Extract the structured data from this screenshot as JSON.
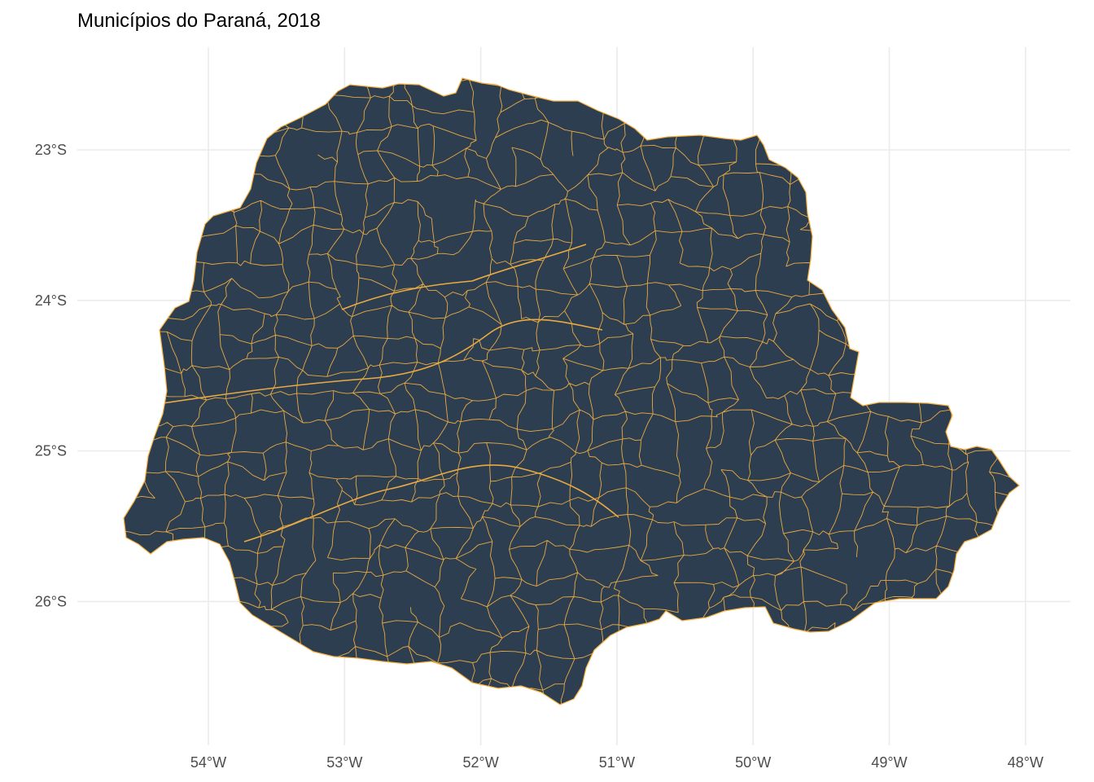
{
  "title": "Municípios do Paraná, 2018",
  "map": {
    "region": "Paraná",
    "fill_color": "#2c3e50",
    "border_color": "#f5b041",
    "background": "#ffffff",
    "grid_color": "#ebebeb",
    "grid": true,
    "legend": "none"
  },
  "axes": {
    "x_ticks": [
      "54°W",
      "53°W",
      "52°W",
      "51°W",
      "50°W",
      "49°W",
      "48°W"
    ],
    "y_ticks": [
      "23°S",
      "24°S",
      "25°S",
      "26°S"
    ],
    "x_values": [
      -54,
      -53,
      -52,
      -51,
      -50,
      -49,
      -48
    ],
    "y_values": [
      -23,
      -24,
      -25,
      -26
    ]
  }
}
